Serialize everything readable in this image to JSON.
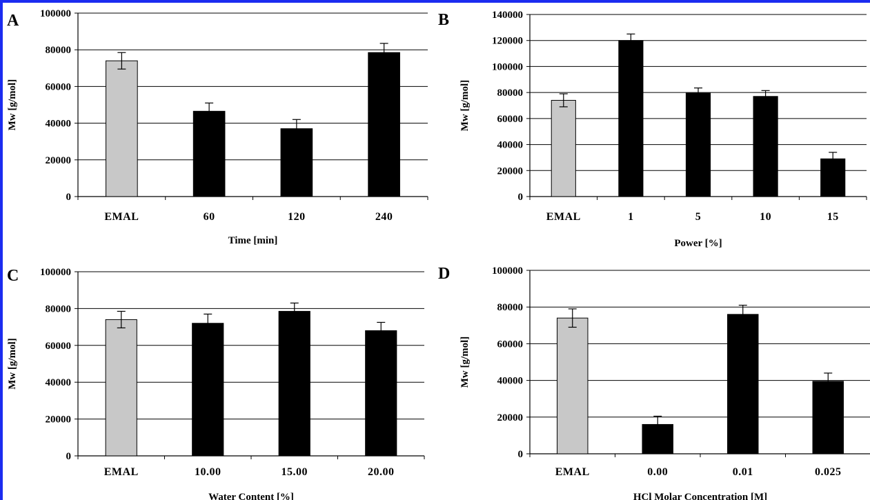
{
  "colors": {
    "reference_bar": "#c8c8c8",
    "sample_bar": "#000000",
    "frame": "#1b2cf0"
  },
  "chart_data": [
    {
      "type": "bar",
      "panel_label": "A",
      "categories": [
        "EMAL",
        "60",
        "120",
        "240"
      ],
      "values": [
        74000,
        46500,
        37000,
        78500
      ],
      "errors": [
        4500,
        4500,
        5000,
        5000
      ],
      "xlabel": "Time [min]",
      "ylabel": "Mw [g/mol]",
      "ylim": [
        0,
        100000
      ],
      "yticks": [
        0,
        20000,
        40000,
        60000,
        80000,
        100000
      ],
      "ytick_labels": [
        "0",
        "20000",
        "40000",
        "60000",
        "80000",
        "100000"
      ],
      "grid": true
    },
    {
      "type": "bar",
      "panel_label": "B",
      "categories": [
        "EMAL",
        "1",
        "5",
        "10",
        "15"
      ],
      "values": [
        74000,
        120000,
        79500,
        77000,
        29000
      ],
      "errors": [
        5000,
        5000,
        4000,
        4500,
        5000
      ],
      "xlabel": "Power [%]",
      "ylabel": "Mw [g/mol]",
      "ylim": [
        0,
        140000
      ],
      "yticks": [
        0,
        20000,
        40000,
        60000,
        80000,
        100000,
        120000,
        140000
      ],
      "ytick_labels": [
        "0",
        "20000",
        "40000",
        "60000",
        "80000",
        "100000",
        "120000",
        "140000"
      ],
      "grid": true
    },
    {
      "type": "bar",
      "panel_label": "C",
      "categories": [
        "EMAL",
        "10.00",
        "15.00",
        "20.00"
      ],
      "values": [
        74000,
        72000,
        78500,
        68000
      ],
      "errors": [
        4500,
        5000,
        4500,
        4500
      ],
      "xlabel": "Water Content [%]",
      "ylabel": "Mw [g/mol]",
      "ylim": [
        0,
        100000
      ],
      "yticks": [
        0,
        20000,
        40000,
        60000,
        80000,
        100000
      ],
      "ytick_labels": [
        "0",
        "20000",
        "40000",
        "60000",
        "80000",
        "100000"
      ],
      "grid": true
    },
    {
      "type": "bar",
      "panel_label": "D",
      "categories": [
        "EMAL",
        "0.00",
        "0.01",
        "0.025"
      ],
      "values": [
        74000,
        16000,
        76000,
        39500
      ],
      "errors": [
        5000,
        4500,
        5000,
        4500
      ],
      "xlabel": "HCl Molar Concentration [M]",
      "ylabel": "Mw [g/mol]",
      "ylim": [
        0,
        100000
      ],
      "yticks": [
        0,
        20000,
        40000,
        60000,
        80000,
        100000
      ],
      "ytick_labels": [
        "0",
        "20000",
        "40000",
        "60000",
        "80000",
        "100000"
      ],
      "grid": true
    }
  ]
}
